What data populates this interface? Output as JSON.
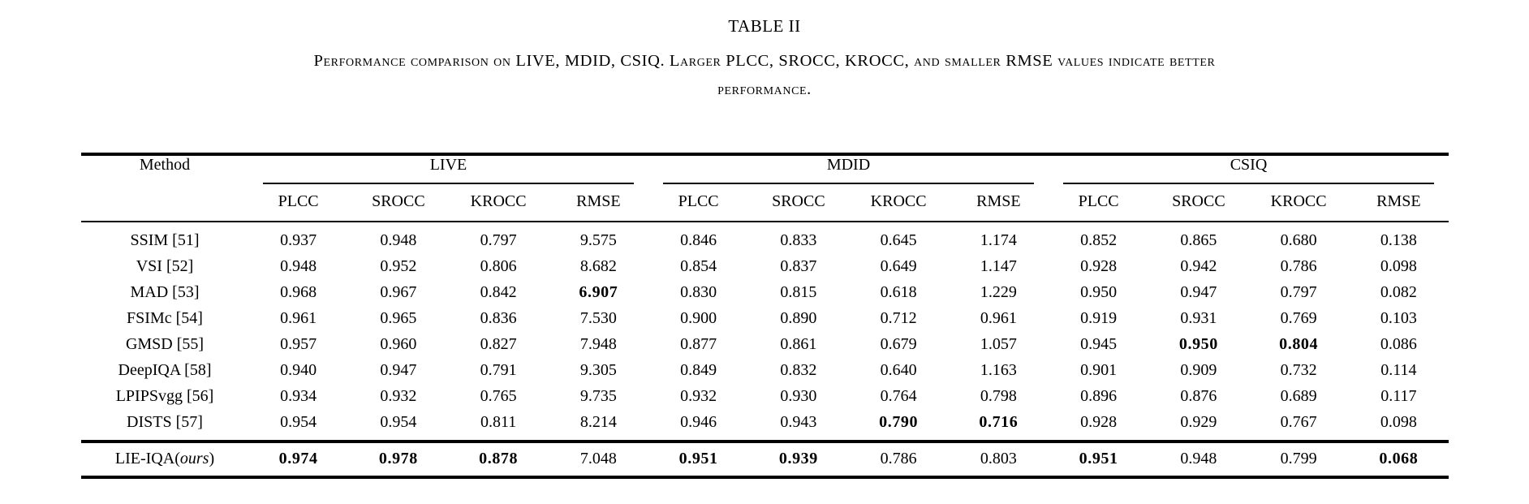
{
  "title": "TABLE II",
  "caption": {
    "line1": "Performance comparison on LIVE, MDID, CSIQ. Larger PLCC, SROCC, KROCC, and smaller RMSE values indicate better",
    "line2": "performance."
  },
  "table": {
    "method_header": "Method",
    "groups": [
      {
        "label": "LIVE",
        "metrics": [
          "PLCC",
          "SROCC",
          "KROCC",
          "RMSE"
        ]
      },
      {
        "label": "MDID",
        "metrics": [
          "PLCC",
          "SROCC",
          "KROCC",
          "RMSE"
        ]
      },
      {
        "label": "CSIQ",
        "metrics": [
          "PLCC",
          "SROCC",
          "KROCC",
          "RMSE"
        ]
      }
    ],
    "rows": [
      {
        "method": "SSIM [51]",
        "values": [
          "0.937",
          "0.948",
          "0.797",
          "9.575",
          "0.846",
          "0.833",
          "0.645",
          "1.174",
          "0.852",
          "0.865",
          "0.680",
          "0.138"
        ],
        "bold": []
      },
      {
        "method": "VSI [52]",
        "values": [
          "0.948",
          "0.952",
          "0.806",
          "8.682",
          "0.854",
          "0.837",
          "0.649",
          "1.147",
          "0.928",
          "0.942",
          "0.786",
          "0.098"
        ],
        "bold": []
      },
      {
        "method": "MAD [53]",
        "values": [
          "0.968",
          "0.967",
          "0.842",
          "6.907",
          "0.830",
          "0.815",
          "0.618",
          "1.229",
          "0.950",
          "0.947",
          "0.797",
          "0.082"
        ],
        "bold": [
          3
        ]
      },
      {
        "method": "FSIMc [54]",
        "values": [
          "0.961",
          "0.965",
          "0.836",
          "7.530",
          "0.900",
          "0.890",
          "0.712",
          "0.961",
          "0.919",
          "0.931",
          "0.769",
          "0.103"
        ],
        "bold": []
      },
      {
        "method": "GMSD [55]",
        "values": [
          "0.957",
          "0.960",
          "0.827",
          "7.948",
          "0.877",
          "0.861",
          "0.679",
          "1.057",
          "0.945",
          "0.950",
          "0.804",
          "0.086"
        ],
        "bold": [
          9,
          10
        ]
      },
      {
        "method": "DeepIQA [58]",
        "values": [
          "0.940",
          "0.947",
          "0.791",
          "9.305",
          "0.849",
          "0.832",
          "0.640",
          "1.163",
          "0.901",
          "0.909",
          "0.732",
          "0.114"
        ],
        "bold": []
      },
      {
        "method": "LPIPSvgg [56]",
        "values": [
          "0.934",
          "0.932",
          "0.765",
          "9.735",
          "0.932",
          "0.930",
          "0.764",
          "0.798",
          "0.896",
          "0.876",
          "0.689",
          "0.117"
        ],
        "bold": []
      },
      {
        "method": "DISTS [57]",
        "values": [
          "0.954",
          "0.954",
          "0.811",
          "8.214",
          "0.946",
          "0.943",
          "0.790",
          "0.716",
          "0.928",
          "0.929",
          "0.767",
          "0.098"
        ],
        "bold": [
          6,
          7
        ]
      }
    ],
    "ours_row": {
      "method_prefix": "LIE-IQA(",
      "method_italic": "ours",
      "method_close": ")",
      "values": [
        "0.974",
        "0.978",
        "0.878",
        "7.048",
        "0.951",
        "0.939",
        "0.786",
        "0.803",
        "0.951",
        "0.948",
        "0.799",
        "0.068"
      ],
      "bold": [
        0,
        1,
        2,
        4,
        5,
        8,
        11
      ]
    }
  }
}
